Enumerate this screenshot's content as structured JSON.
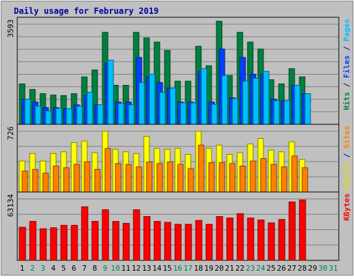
{
  "chart_data": {
    "type": "bar",
    "title": "Daily usage for February 2019",
    "categories": [
      "1",
      "2",
      "3",
      "4",
      "5",
      "6",
      "7",
      "8",
      "9",
      "10",
      "11",
      "12",
      "13",
      "14",
      "15",
      "16",
      "17",
      "18",
      "19",
      "20",
      "21",
      "22",
      "23",
      "24",
      "25",
      "26",
      "27",
      "28",
      "29",
      "30",
      "31"
    ],
    "weekend_days": [
      2,
      3,
      9,
      10,
      16,
      17,
      23,
      24,
      30,
      31
    ],
    "panels": [
      {
        "id": "hits",
        "max_label": "3593",
        "ymax": 3593,
        "right_labels": [
          {
            "text": "Hits",
            "color": "#008040"
          },
          {
            "text": " / ",
            "color": "#0000a0"
          },
          {
            "text": "Files",
            "color": "#0040ff"
          },
          {
            "text": " / ",
            "color": "#0000a0"
          },
          {
            "text": "Pages",
            "color": "#00c0ff"
          }
        ],
        "series": [
          {
            "name": "Hits",
            "color": "#008040",
            "values": [
              1450,
              1250,
              1100,
              1050,
              1030,
              1100,
              1700,
              1950,
              3300,
              1400,
              1400,
              3300,
              3100,
              2950,
              2650,
              1550,
              1550,
              2800,
              2100,
              3700,
              1750,
              3300,
              2950,
              2700,
              1600,
              1450,
              2000,
              1700,
              0,
              0,
              0
            ]
          },
          {
            "name": "Files",
            "color": "#0040ff",
            "values": [
              900,
              800,
              600,
              600,
              560,
              700,
              1050,
              700,
              2200,
              800,
              800,
              2400,
              1700,
              1500,
              1300,
              800,
              800,
              1900,
              800,
              2700,
              950,
              2400,
              1800,
              1800,
              900,
              850,
              1400,
              1100,
              0,
              0,
              0
            ]
          },
          {
            "name": "Pages",
            "color": "#00c0ff",
            "values": [
              900,
              650,
              480,
              570,
              560,
              650,
              1150,
              700,
              2300,
              750,
              700,
              1500,
              1800,
              1150,
              1300,
              770,
              770,
              2000,
              720,
              1750,
              920,
              1550,
              1650,
              1900,
              850,
              850,
              1400,
              1100,
              0,
              0,
              0
            ]
          }
        ]
      },
      {
        "id": "visits",
        "max_label": "726",
        "ymax": 726,
        "right_labels": [
          {
            "text": "Visits",
            "color": "#e0e000"
          },
          {
            "text": " / ",
            "color": "#0000a0"
          },
          {
            "text": "Sites",
            "color": "#ff8000"
          }
        ],
        "series": [
          {
            "name": "Visits",
            "color": "#ffff00",
            "values": [
              370,
              460,
              370,
              460,
              480,
              590,
              610,
              470,
              726,
              510,
              480,
              460,
              665,
              520,
              510,
              520,
              450,
              726,
              520,
              560,
              450,
              470,
              575,
              640,
              500,
              480,
              600,
              390,
              0,
              0,
              0
            ]
          },
          {
            "name": "Sites",
            "color": "#ff8000",
            "values": [
              250,
              270,
              225,
              310,
              290,
              330,
              360,
              270,
              520,
              340,
              330,
              300,
              360,
              340,
              360,
              330,
              280,
              560,
              350,
              350,
              340,
              310,
              370,
              400,
              330,
              300,
              430,
              290,
              0,
              0,
              0
            ]
          }
        ]
      },
      {
        "id": "kbytes",
        "max_label": "63134",
        "ymax": 63134,
        "right_labels": [
          {
            "text": "KBytes",
            "color": "#ff0000"
          }
        ],
        "series": [
          {
            "name": "KBytes",
            "color": "#ff0000",
            "values": [
              34000,
              40000,
              32500,
              33500,
              36000,
              36000,
              55000,
              40000,
              52000,
              40000,
              38000,
              52000,
              45000,
              40000,
              39000,
              37000,
              37000,
              41000,
              37000,
              45000,
              43500,
              48000,
              43500,
              41500,
              38500,
              42000,
              60000,
              62000,
              0,
              0,
              0
            ]
          }
        ]
      }
    ]
  }
}
